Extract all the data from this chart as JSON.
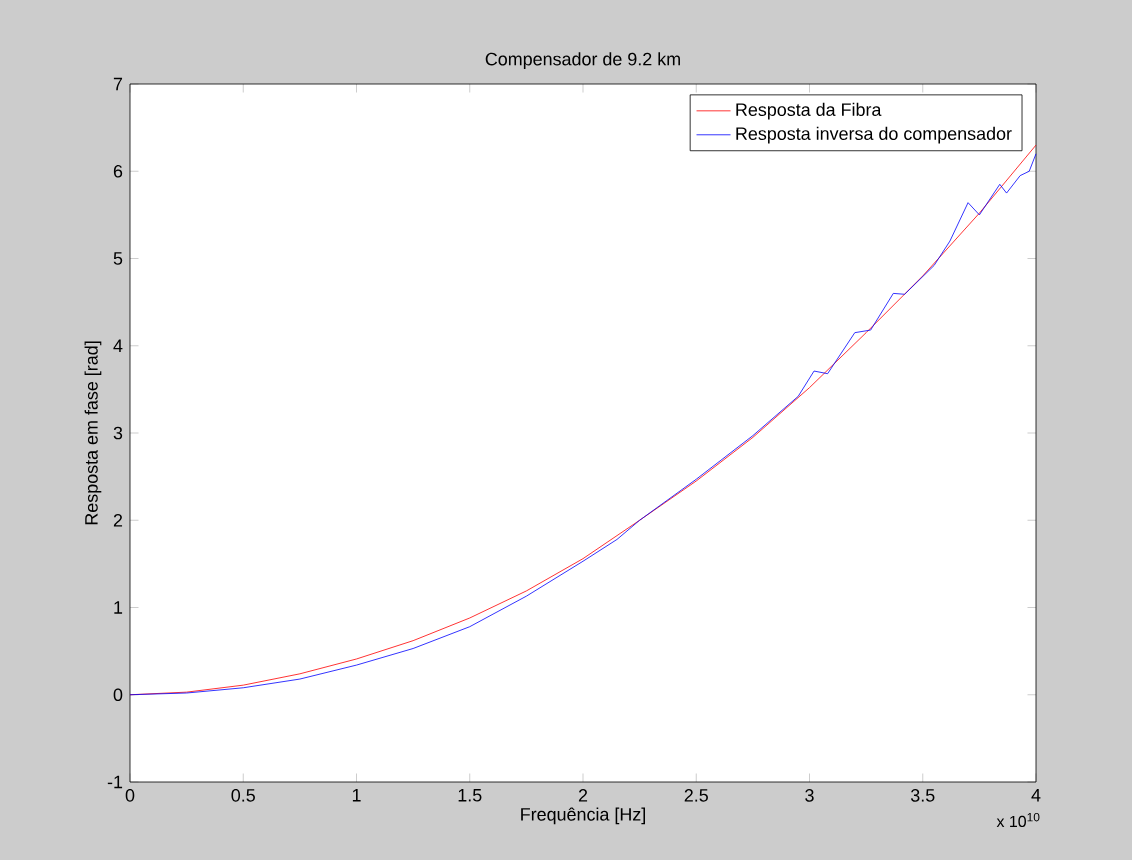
{
  "chart_data": {
    "type": "line",
    "title": "Compensador de 9.2 km",
    "xlabel": "Frequência [Hz]",
    "ylabel": "Resposta em fase [rad]",
    "xlim": [
      0,
      4
    ],
    "xticks": [
      0,
      0.5,
      1,
      1.5,
      2,
      2.5,
      3,
      3.5,
      4
    ],
    "ylim": [
      -1,
      7
    ],
    "yticks": [
      -1,
      0,
      1,
      2,
      3,
      4,
      5,
      6,
      7
    ],
    "annotations": [
      "x 10$^{10}$"
    ],
    "grid": false,
    "legend": "top right",
    "marker": "none",
    "line_style": "solid",
    "series": [
      {
        "name": "Resposta da Fibra",
        "color": "#ff0000",
        "x": [
          0,
          0.25,
          0.5,
          0.75,
          1,
          1.25,
          1.5,
          1.75,
          2,
          2.25,
          2.5,
          2.75,
          3,
          3.25,
          3.5,
          3.75,
          4
        ],
        "values": [
          0,
          0.03,
          0.11,
          0.24,
          0.41,
          0.62,
          0.88,
          1.19,
          1.56,
          2.0,
          2.45,
          2.95,
          3.52,
          4.15,
          4.8,
          5.52,
          6.3
        ]
      },
      {
        "name": "Resposta inversa do compensador",
        "color": "#0000ff",
        "x": [
          0,
          0.25,
          0.5,
          0.75,
          1,
          1.25,
          1.5,
          1.75,
          2,
          2.15,
          2.25,
          2.5,
          2.75,
          2.95,
          3.02,
          3.08,
          3.2,
          3.27,
          3.37,
          3.42,
          3.55,
          3.62,
          3.7,
          3.75,
          3.84,
          3.87,
          3.93,
          3.97,
          4
        ],
        "values": [
          0,
          0.02,
          0.08,
          0.18,
          0.34,
          0.53,
          0.78,
          1.13,
          1.53,
          1.78,
          2.0,
          2.47,
          2.97,
          3.42,
          3.71,
          3.68,
          4.15,
          4.18,
          4.6,
          4.59,
          4.92,
          5.2,
          5.64,
          5.5,
          5.85,
          5.75,
          5.95,
          6.0,
          6.2
        ]
      }
    ]
  }
}
